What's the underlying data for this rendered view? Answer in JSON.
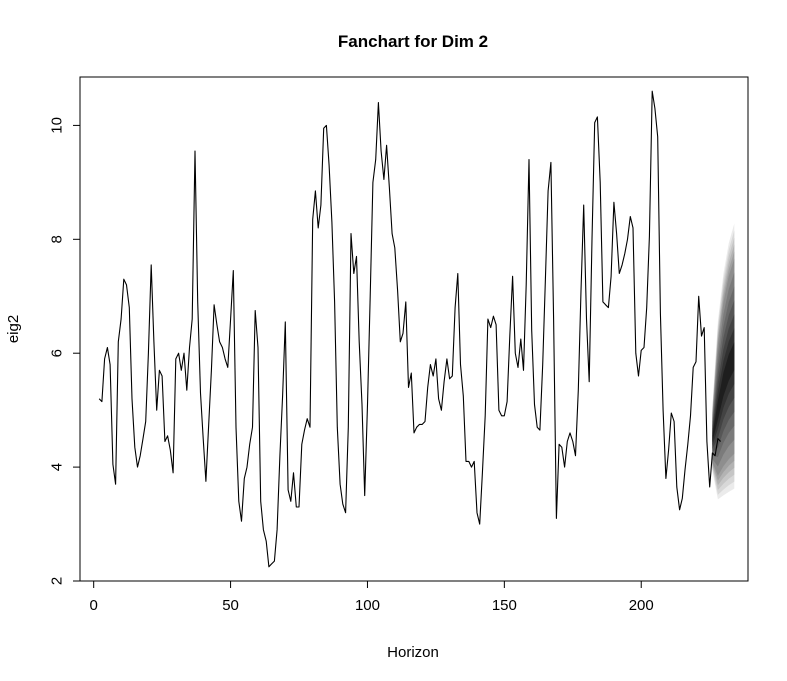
{
  "chart_data": {
    "type": "line",
    "title": "Fanchart for Dim 2",
    "xlabel": "Horizon",
    "ylabel": "eig2",
    "xlim": [
      -5,
      239
    ],
    "ylim": [
      2,
      10.85
    ],
    "xticks": [
      0,
      50,
      100,
      150,
      200
    ],
    "yticks": [
      2,
      4,
      6,
      8,
      10
    ],
    "grid": false,
    "legend": "none",
    "series": [
      {
        "x_start": 2,
        "values": [
          5.2,
          5.15,
          5.9,
          6.1,
          5.8,
          4.05,
          3.7,
          6.2,
          6.6,
          7.3,
          7.2,
          6.8,
          5.2,
          4.35,
          4.0,
          4.2,
          4.5,
          4.8,
          6.0,
          7.55,
          6.2,
          5.0,
          5.7,
          5.6,
          4.45,
          4.55,
          4.3,
          3.9,
          5.9,
          6.0,
          5.7,
          6.0,
          5.35,
          6.1,
          6.6,
          9.55,
          6.9,
          5.3,
          4.5,
          3.75,
          4.75,
          5.7,
          6.85,
          6.5,
          6.2,
          6.1,
          5.9,
          5.75,
          6.6,
          7.45,
          4.7,
          3.4,
          3.05,
          3.8,
          4.0,
          4.4,
          4.7,
          6.75,
          6.1,
          3.4,
          2.9,
          2.7,
          2.25,
          2.3,
          2.35,
          2.9,
          4.2,
          5.25,
          6.55,
          3.6,
          3.4,
          3.9,
          3.3,
          3.3,
          4.4,
          4.65,
          4.85,
          4.7,
          8.35,
          8.85,
          8.2,
          8.6,
          9.95,
          10.0,
          9.3,
          8.3,
          6.9,
          4.7,
          3.7,
          3.35,
          3.2,
          4.7,
          8.1,
          7.4,
          7.7,
          6.2,
          5.1,
          3.5,
          5.1,
          7.0,
          9.0,
          9.4,
          10.4,
          9.55,
          9.05,
          9.65,
          8.9,
          8.1,
          7.85,
          7.1,
          6.2,
          6.35,
          6.9,
          5.4,
          5.65,
          4.6,
          4.7,
          4.75,
          4.75,
          4.8,
          5.4,
          5.8,
          5.6,
          5.9,
          5.2,
          5.0,
          5.5,
          5.9,
          5.55,
          5.6,
          6.8,
          7.4,
          5.8,
          5.25,
          4.1,
          4.1,
          4.0,
          4.1,
          3.2,
          3.0,
          3.9,
          4.9,
          6.6,
          6.45,
          6.65,
          6.5,
          5.0,
          4.9,
          4.9,
          5.15,
          6.3,
          7.35,
          6.0,
          5.75,
          6.25,
          5.7,
          7.2,
          9.4,
          6.4,
          5.1,
          4.7,
          4.65,
          5.8,
          7.3,
          8.85,
          9.35,
          6.6,
          3.1,
          4.4,
          4.35,
          4.0,
          4.45,
          4.6,
          4.45,
          4.2,
          5.35,
          7.1,
          8.6,
          6.6,
          5.5,
          8.0,
          10.05,
          10.15,
          9.0,
          6.9,
          6.85,
          6.8,
          7.35,
          8.65,
          8.1,
          7.4,
          7.55,
          7.75,
          8.0,
          8.4,
          8.2,
          6.0,
          5.6,
          6.05,
          6.1,
          6.8,
          8.05,
          10.6,
          10.3,
          9.8,
          6.7,
          5.0,
          3.8,
          4.3,
          4.95,
          4.8,
          3.65,
          3.25,
          3.45,
          3.95,
          4.4,
          4.9,
          5.75,
          5.85,
          7.0,
          6.3,
          6.45,
          4.45,
          3.65,
          4.25,
          4.2,
          4.5,
          4.45
        ]
      }
    ],
    "fan": {
      "x": [
        226,
        228,
        230,
        232,
        234
      ],
      "median": [
        4.5,
        5.0,
        5.45,
        5.75,
        5.95
      ],
      "spread": [
        0.6,
        1.65,
        2.05,
        2.3,
        2.45
      ],
      "bands": [
        0.95,
        0.9,
        0.85,
        0.8,
        0.75,
        0.7,
        0.6,
        0.5,
        0.4,
        0.3,
        0.2,
        0.1
      ]
    }
  }
}
